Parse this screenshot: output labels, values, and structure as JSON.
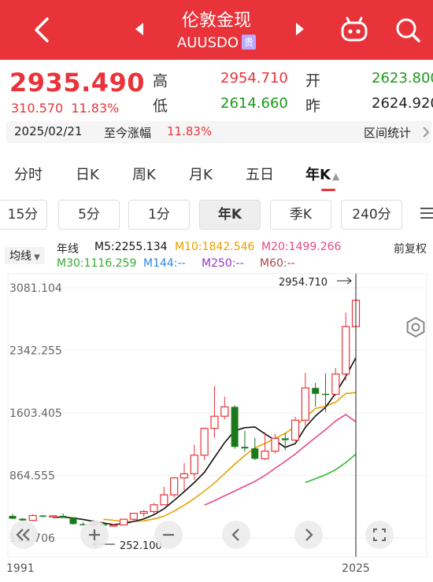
{
  "header": {
    "title": "伦敦金现",
    "symbol": "AUUSDO",
    "tag": "贵"
  },
  "quote": {
    "price": "2935.490",
    "change": "310.570",
    "change_pct": "11.83%",
    "high_label": "高",
    "high": "2954.710",
    "low_label": "低",
    "low": "2614.660",
    "open_label": "开",
    "open": "2623.800",
    "prev_label": "昨",
    "prev": "2624.920",
    "date": "2025/02/21",
    "since_label": "至今涨幅",
    "since_pct": "11.83%",
    "range_stats": "区间统计"
  },
  "tabs": [
    "分时",
    "日K",
    "周K",
    "月K",
    "五日",
    "年K"
  ],
  "active_tab_arrow": "▲",
  "periods": [
    "15分",
    "5分",
    "1分",
    "年K",
    "季K",
    "240分"
  ],
  "indicators": {
    "avg_select": "均线",
    "line_label": "年线",
    "m5": "M5:2255.134",
    "m10": "M10:1842.546",
    "m20": "M20:1499.266",
    "m30": "M30:1116.259",
    "m144": "M144:--",
    "m250": "M250:--",
    "m60": "M60:--",
    "adjust": "前复权"
  },
  "colors": {
    "up": "#e8333a",
    "down": "#1a7a1a",
    "m5": "#111111",
    "m10": "#e8a000",
    "m20": "#e84a7a",
    "m30": "#33bb33",
    "m144": "#2a8ae8",
    "m250": "#9933cc",
    "m60": "#b34444"
  },
  "chart_data": {
    "type": "candlestick",
    "y_ticks": [
      "3081.104",
      "2342.255",
      "1603.405",
      "864.555",
      "125.706"
    ],
    "ylim": [
      125.706,
      3081.104
    ],
    "x_labels": [
      "1991",
      "2025"
    ],
    "max_label": "2954.710",
    "min_label": "252.100",
    "candles": [
      {
        "year": 1991,
        "o": 386,
        "h": 410,
        "l": 350,
        "c": 353
      },
      {
        "year": 1992,
        "o": 353,
        "h": 360,
        "l": 327,
        "c": 333
      },
      {
        "year": 1993,
        "o": 333,
        "h": 407,
        "l": 326,
        "c": 391
      },
      {
        "year": 1994,
        "o": 391,
        "h": 397,
        "l": 370,
        "c": 383
      },
      {
        "year": 1995,
        "o": 383,
        "h": 396,
        "l": 372,
        "c": 387
      },
      {
        "year": 1996,
        "o": 387,
        "h": 416,
        "l": 367,
        "c": 369
      },
      {
        "year": 1997,
        "o": 369,
        "h": 367,
        "l": 283,
        "c": 290
      },
      {
        "year": 1998,
        "o": 290,
        "h": 313,
        "l": 273,
        "c": 288
      },
      {
        "year": 1999,
        "o": 288,
        "h": 338,
        "l": 252,
        "c": 290
      },
      {
        "year": 2000,
        "o": 290,
        "h": 317,
        "l": 263,
        "c": 273
      },
      {
        "year": 2001,
        "o": 273,
        "h": 293,
        "l": 255,
        "c": 279
      },
      {
        "year": 2002,
        "o": 279,
        "h": 350,
        "l": 277,
        "c": 347
      },
      {
        "year": 2003,
        "o": 347,
        "h": 417,
        "l": 320,
        "c": 417
      },
      {
        "year": 2004,
        "o": 417,
        "h": 456,
        "l": 373,
        "c": 438
      },
      {
        "year": 2005,
        "o": 438,
        "h": 540,
        "l": 411,
        "c": 518
      },
      {
        "year": 2006,
        "o": 518,
        "h": 730,
        "l": 525,
        "c": 636
      },
      {
        "year": 2007,
        "o": 636,
        "h": 845,
        "l": 603,
        "c": 836
      },
      {
        "year": 2008,
        "o": 836,
        "h": 1011,
        "l": 681,
        "c": 884
      },
      {
        "year": 2009,
        "o": 884,
        "h": 1227,
        "l": 810,
        "c": 1104
      },
      {
        "year": 2010,
        "o": 1104,
        "h": 1431,
        "l": 1044,
        "c": 1421
      },
      {
        "year": 2011,
        "o": 1421,
        "h": 1921,
        "l": 1308,
        "c": 1564
      },
      {
        "year": 2012,
        "o": 1564,
        "h": 1796,
        "l": 1527,
        "c": 1675
      },
      {
        "year": 2013,
        "o": 1675,
        "h": 1693,
        "l": 1180,
        "c": 1202
      },
      {
        "year": 2014,
        "o": 1202,
        "h": 1392,
        "l": 1142,
        "c": 1184
      },
      {
        "year": 2015,
        "o": 1184,
        "h": 1308,
        "l": 1046,
        "c": 1061
      },
      {
        "year": 2016,
        "o": 1061,
        "h": 1375,
        "l": 1046,
        "c": 1152
      },
      {
        "year": 2017,
        "o": 1152,
        "h": 1358,
        "l": 1124,
        "c": 1303
      },
      {
        "year": 2018,
        "o": 1303,
        "h": 1366,
        "l": 1160,
        "c": 1282
      },
      {
        "year": 2019,
        "o": 1282,
        "h": 1557,
        "l": 1266,
        "c": 1517
      },
      {
        "year": 2020,
        "o": 1517,
        "h": 2075,
        "l": 1451,
        "c": 1898
      },
      {
        "year": 2021,
        "o": 1898,
        "h": 1959,
        "l": 1677,
        "c": 1829
      },
      {
        "year": 2022,
        "o": 1829,
        "h": 2070,
        "l": 1615,
        "c": 1824
      },
      {
        "year": 2023,
        "o": 1824,
        "h": 2135,
        "l": 1805,
        "c": 2063
      },
      {
        "year": 2024,
        "o": 2063,
        "h": 2790,
        "l": 1984,
        "c": 2624
      },
      {
        "year": 2025,
        "o": 2624,
        "h": 2955,
        "l": 2615,
        "c": 2935
      }
    ],
    "ma_m5": [
      null,
      null,
      null,
      null,
      369,
      373,
      362,
      343,
      323,
      302,
      284,
      295,
      321,
      351,
      400,
      471,
      569,
      673,
      781,
      901,
      1078,
      1252,
      1393,
      1429,
      1437,
      1355,
      1280,
      1196,
      1241,
      1433,
      1567,
      1670,
      1836,
      2034,
      2255
    ],
    "ma_m10": [
      null,
      null,
      null,
      null,
      null,
      null,
      null,
      null,
      null,
      346,
      335,
      318,
      321,
      327,
      351,
      383,
      444,
      512,
      591,
      680,
      774,
      886,
      996,
      1102,
      1191,
      1242,
      1304,
      1361,
      1444,
      1552,
      1655,
      1682,
      1731,
      1832,
      1843
    ],
    "ma_m20": [
      null,
      null,
      null,
      null,
      null,
      null,
      null,
      null,
      null,
      null,
      null,
      null,
      null,
      null,
      null,
      null,
      null,
      null,
      null,
      513,
      567,
      624,
      680,
      738,
      794,
      865,
      949,
      1031,
      1117,
      1217,
      1312,
      1405,
      1508,
      1584,
      1499
    ],
    "ma_m30": [
      null,
      null,
      null,
      null,
      null,
      null,
      null,
      null,
      null,
      null,
      null,
      null,
      null,
      null,
      null,
      null,
      null,
      null,
      null,
      null,
      null,
      null,
      null,
      null,
      null,
      null,
      null,
      null,
      null,
      781,
      826,
      873,
      932,
      1016,
      1116
    ]
  }
}
